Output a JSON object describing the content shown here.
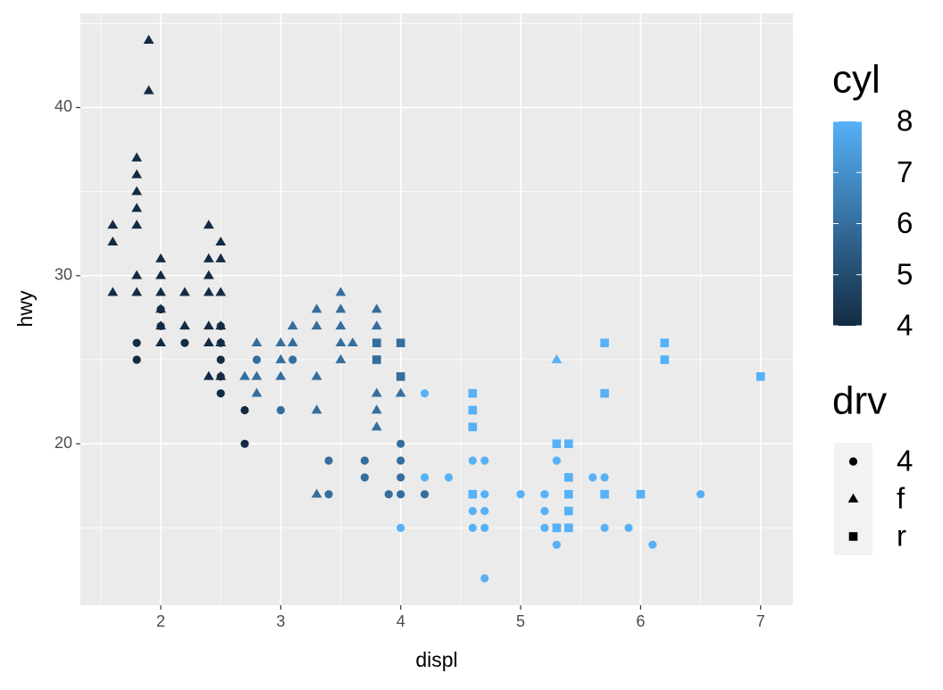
{
  "chart_data": {
    "type": "scatter",
    "x_label": "displ",
    "y_label": "hwy",
    "xlim": [
      1.33,
      7.27
    ],
    "ylim": [
      10.4,
      45.6
    ],
    "xticks": [
      2,
      3,
      4,
      5,
      6,
      7
    ],
    "yticks": [
      20,
      30,
      40
    ],
    "grid": true,
    "color_legend": {
      "title": "cyl",
      "lim": [
        4,
        8
      ],
      "ticks": [
        4,
        5,
        6,
        7,
        8
      ],
      "low": "#132B43",
      "high": "#56B1F7"
    },
    "shape_legend": {
      "title": "drv",
      "levels": [
        "4",
        "f",
        "r"
      ],
      "shapes": [
        "circle",
        "triangle",
        "square"
      ]
    },
    "points": [
      {
        "x": 1.6,
        "y": 33,
        "cyl": 4,
        "drv": "f"
      },
      {
        "x": 1.6,
        "y": 32,
        "cyl": 4,
        "drv": "f"
      },
      {
        "x": 1.6,
        "y": 29,
        "cyl": 4,
        "drv": "f"
      },
      {
        "x": 1.8,
        "y": 37,
        "cyl": 4,
        "drv": "f"
      },
      {
        "x": 1.8,
        "y": 36,
        "cyl": 4,
        "drv": "f"
      },
      {
        "x": 1.8,
        "y": 35,
        "cyl": 4,
        "drv": "f"
      },
      {
        "x": 1.8,
        "y": 34,
        "cyl": 4,
        "drv": "f"
      },
      {
        "x": 1.8,
        "y": 33,
        "cyl": 4,
        "drv": "f"
      },
      {
        "x": 1.8,
        "y": 30,
        "cyl": 4,
        "drv": "f"
      },
      {
        "x": 1.8,
        "y": 29,
        "cyl": 4,
        "drv": "f"
      },
      {
        "x": 1.9,
        "y": 44,
        "cyl": 4,
        "drv": "f"
      },
      {
        "x": 1.9,
        "y": 41,
        "cyl": 4,
        "drv": "f"
      },
      {
        "x": 2.0,
        "y": 31,
        "cyl": 4,
        "drv": "f"
      },
      {
        "x": 2.0,
        "y": 30,
        "cyl": 4,
        "drv": "f"
      },
      {
        "x": 2.0,
        "y": 29,
        "cyl": 4,
        "drv": "f"
      },
      {
        "x": 2.0,
        "y": 28,
        "cyl": 4,
        "drv": "f"
      },
      {
        "x": 2.0,
        "y": 27,
        "cyl": 4,
        "drv": "f"
      },
      {
        "x": 2.0,
        "y": 26,
        "cyl": 4,
        "drv": "f"
      },
      {
        "x": 2.2,
        "y": 29,
        "cyl": 4,
        "drv": "f"
      },
      {
        "x": 2.2,
        "y": 27,
        "cyl": 4,
        "drv": "f"
      },
      {
        "x": 2.4,
        "y": 33,
        "cyl": 4,
        "drv": "f"
      },
      {
        "x": 2.4,
        "y": 31,
        "cyl": 4,
        "drv": "f"
      },
      {
        "x": 2.4,
        "y": 30,
        "cyl": 4,
        "drv": "f"
      },
      {
        "x": 2.4,
        "y": 29,
        "cyl": 4,
        "drv": "f"
      },
      {
        "x": 2.4,
        "y": 27,
        "cyl": 4,
        "drv": "f"
      },
      {
        "x": 2.4,
        "y": 26,
        "cyl": 4,
        "drv": "f"
      },
      {
        "x": 2.4,
        "y": 24,
        "cyl": 4,
        "drv": "f"
      },
      {
        "x": 2.5,
        "y": 32,
        "cyl": 4,
        "drv": "f"
      },
      {
        "x": 2.5,
        "y": 31,
        "cyl": 4,
        "drv": "f"
      },
      {
        "x": 2.5,
        "y": 29,
        "cyl": 4,
        "drv": "f"
      },
      {
        "x": 2.5,
        "y": 27,
        "cyl": 4,
        "drv": "f"
      },
      {
        "x": 2.5,
        "y": 26,
        "cyl": 4,
        "drv": "f"
      },
      {
        "x": 2.5,
        "y": 24,
        "cyl": 4,
        "drv": "f"
      },
      {
        "x": 1.8,
        "y": 26,
        "cyl": 4,
        "drv": "4"
      },
      {
        "x": 1.8,
        "y": 25,
        "cyl": 4,
        "drv": "4"
      },
      {
        "x": 2.0,
        "y": 28,
        "cyl": 4,
        "drv": "4"
      },
      {
        "x": 2.0,
        "y": 27,
        "cyl": 4,
        "drv": "4"
      },
      {
        "x": 2.2,
        "y": 26,
        "cyl": 4,
        "drv": "4"
      },
      {
        "x": 2.5,
        "y": 27,
        "cyl": 4,
        "drv": "4"
      },
      {
        "x": 2.5,
        "y": 26,
        "cyl": 4,
        "drv": "4"
      },
      {
        "x": 2.5,
        "y": 25,
        "cyl": 4,
        "drv": "4"
      },
      {
        "x": 2.5,
        "y": 24,
        "cyl": 4,
        "drv": "4"
      },
      {
        "x": 2.5,
        "y": 23,
        "cyl": 4,
        "drv": "4"
      },
      {
        "x": 2.7,
        "y": 22,
        "cyl": 4,
        "drv": "4"
      },
      {
        "x": 2.7,
        "y": 20,
        "cyl": 4,
        "drv": "4"
      },
      {
        "x": 2.7,
        "y": 24,
        "cyl": 6,
        "drv": "f"
      },
      {
        "x": 2.8,
        "y": 26,
        "cyl": 6,
        "drv": "f"
      },
      {
        "x": 2.8,
        "y": 24,
        "cyl": 6,
        "drv": "f"
      },
      {
        "x": 2.8,
        "y": 23,
        "cyl": 6,
        "drv": "f"
      },
      {
        "x": 2.8,
        "y": 25,
        "cyl": 6,
        "drv": "4"
      },
      {
        "x": 3.0,
        "y": 26,
        "cyl": 6,
        "drv": "f"
      },
      {
        "x": 3.0,
        "y": 25,
        "cyl": 6,
        "drv": "f"
      },
      {
        "x": 3.0,
        "y": 24,
        "cyl": 6,
        "drv": "f"
      },
      {
        "x": 3.0,
        "y": 22,
        "cyl": 6,
        "drv": "4"
      },
      {
        "x": 3.1,
        "y": 27,
        "cyl": 6,
        "drv": "f"
      },
      {
        "x": 3.1,
        "y": 26,
        "cyl": 6,
        "drv": "f"
      },
      {
        "x": 3.1,
        "y": 25,
        "cyl": 6,
        "drv": "4"
      },
      {
        "x": 3.3,
        "y": 28,
        "cyl": 6,
        "drv": "f"
      },
      {
        "x": 3.3,
        "y": 27,
        "cyl": 6,
        "drv": "f"
      },
      {
        "x": 3.3,
        "y": 24,
        "cyl": 6,
        "drv": "f"
      },
      {
        "x": 3.3,
        "y": 22,
        "cyl": 6,
        "drv": "f"
      },
      {
        "x": 3.3,
        "y": 17,
        "cyl": 6,
        "drv": "f"
      },
      {
        "x": 3.4,
        "y": 19,
        "cyl": 6,
        "drv": "4"
      },
      {
        "x": 3.4,
        "y": 17,
        "cyl": 6,
        "drv": "4"
      },
      {
        "x": 3.5,
        "y": 29,
        "cyl": 6,
        "drv": "f"
      },
      {
        "x": 3.5,
        "y": 28,
        "cyl": 6,
        "drv": "f"
      },
      {
        "x": 3.5,
        "y": 27,
        "cyl": 6,
        "drv": "f"
      },
      {
        "x": 3.5,
        "y": 26,
        "cyl": 6,
        "drv": "f"
      },
      {
        "x": 3.5,
        "y": 25,
        "cyl": 6,
        "drv": "f"
      },
      {
        "x": 3.6,
        "y": 26,
        "cyl": 6,
        "drv": "f"
      },
      {
        "x": 3.7,
        "y": 19,
        "cyl": 6,
        "drv": "4"
      },
      {
        "x": 3.7,
        "y": 18,
        "cyl": 6,
        "drv": "4"
      },
      {
        "x": 3.8,
        "y": 28,
        "cyl": 6,
        "drv": "f"
      },
      {
        "x": 3.8,
        "y": 27,
        "cyl": 6,
        "drv": "f"
      },
      {
        "x": 3.8,
        "y": 23,
        "cyl": 6,
        "drv": "f"
      },
      {
        "x": 3.8,
        "y": 22,
        "cyl": 6,
        "drv": "f"
      },
      {
        "x": 3.8,
        "y": 21,
        "cyl": 6,
        "drv": "f"
      },
      {
        "x": 3.8,
        "y": 26,
        "cyl": 6,
        "drv": "r"
      },
      {
        "x": 3.8,
        "y": 25,
        "cyl": 6,
        "drv": "r"
      },
      {
        "x": 3.9,
        "y": 17,
        "cyl": 6,
        "drv": "4"
      },
      {
        "x": 4.0,
        "y": 26,
        "cyl": 6,
        "drv": "r"
      },
      {
        "x": 4.0,
        "y": 24,
        "cyl": 6,
        "drv": "r"
      },
      {
        "x": 4.0,
        "y": 23,
        "cyl": 6,
        "drv": "f"
      },
      {
        "x": 4.0,
        "y": 20,
        "cyl": 6,
        "drv": "4"
      },
      {
        "x": 4.0,
        "y": 19,
        "cyl": 6,
        "drv": "4"
      },
      {
        "x": 4.0,
        "y": 18,
        "cyl": 6,
        "drv": "4"
      },
      {
        "x": 4.0,
        "y": 17,
        "cyl": 6,
        "drv": "4"
      },
      {
        "x": 4.0,
        "y": 15,
        "cyl": 8,
        "drv": "4"
      },
      {
        "x": 4.2,
        "y": 23,
        "cyl": 8,
        "drv": "4"
      },
      {
        "x": 4.2,
        "y": 18,
        "cyl": 8,
        "drv": "4"
      },
      {
        "x": 4.2,
        "y": 17,
        "cyl": 6,
        "drv": "4"
      },
      {
        "x": 4.4,
        "y": 18,
        "cyl": 8,
        "drv": "4"
      },
      {
        "x": 4.6,
        "y": 23,
        "cyl": 8,
        "drv": "r"
      },
      {
        "x": 4.6,
        "y": 22,
        "cyl": 8,
        "drv": "r"
      },
      {
        "x": 4.6,
        "y": 21,
        "cyl": 8,
        "drv": "r"
      },
      {
        "x": 4.6,
        "y": 17,
        "cyl": 8,
        "drv": "r"
      },
      {
        "x": 4.6,
        "y": 19,
        "cyl": 8,
        "drv": "4"
      },
      {
        "x": 4.6,
        "y": 17,
        "cyl": 8,
        "drv": "4"
      },
      {
        "x": 4.6,
        "y": 16,
        "cyl": 8,
        "drv": "4"
      },
      {
        "x": 4.6,
        "y": 15,
        "cyl": 8,
        "drv": "4"
      },
      {
        "x": 4.7,
        "y": 19,
        "cyl": 8,
        "drv": "4"
      },
      {
        "x": 4.7,
        "y": 17,
        "cyl": 8,
        "drv": "4"
      },
      {
        "x": 4.7,
        "y": 16,
        "cyl": 8,
        "drv": "4"
      },
      {
        "x": 4.7,
        "y": 15,
        "cyl": 8,
        "drv": "4"
      },
      {
        "x": 4.7,
        "y": 12,
        "cyl": 8,
        "drv": "4"
      },
      {
        "x": 5.0,
        "y": 17,
        "cyl": 8,
        "drv": "4"
      },
      {
        "x": 5.2,
        "y": 17,
        "cyl": 8,
        "drv": "4"
      },
      {
        "x": 5.2,
        "y": 16,
        "cyl": 8,
        "drv": "4"
      },
      {
        "x": 5.2,
        "y": 15,
        "cyl": 8,
        "drv": "4"
      },
      {
        "x": 5.3,
        "y": 25,
        "cyl": 8,
        "drv": "f"
      },
      {
        "x": 5.3,
        "y": 20,
        "cyl": 8,
        "drv": "r"
      },
      {
        "x": 5.3,
        "y": 15,
        "cyl": 8,
        "drv": "r"
      },
      {
        "x": 5.3,
        "y": 19,
        "cyl": 8,
        "drv": "4"
      },
      {
        "x": 5.3,
        "y": 15,
        "cyl": 8,
        "drv": "4"
      },
      {
        "x": 5.3,
        "y": 14,
        "cyl": 8,
        "drv": "4"
      },
      {
        "x": 5.4,
        "y": 20,
        "cyl": 8,
        "drv": "r"
      },
      {
        "x": 5.4,
        "y": 18,
        "cyl": 8,
        "drv": "r"
      },
      {
        "x": 5.4,
        "y": 17,
        "cyl": 8,
        "drv": "r"
      },
      {
        "x": 5.4,
        "y": 16,
        "cyl": 8,
        "drv": "r"
      },
      {
        "x": 5.4,
        "y": 15,
        "cyl": 8,
        "drv": "r"
      },
      {
        "x": 5.4,
        "y": 15,
        "cyl": 8,
        "drv": "4"
      },
      {
        "x": 5.6,
        "y": 18,
        "cyl": 8,
        "drv": "4"
      },
      {
        "x": 5.7,
        "y": 26,
        "cyl": 8,
        "drv": "r"
      },
      {
        "x": 5.7,
        "y": 23,
        "cyl": 8,
        "drv": "r"
      },
      {
        "x": 5.7,
        "y": 17,
        "cyl": 8,
        "drv": "r"
      },
      {
        "x": 5.7,
        "y": 18,
        "cyl": 8,
        "drv": "4"
      },
      {
        "x": 5.7,
        "y": 15,
        "cyl": 8,
        "drv": "4"
      },
      {
        "x": 5.9,
        "y": 15,
        "cyl": 8,
        "drv": "4"
      },
      {
        "x": 6.0,
        "y": 17,
        "cyl": 8,
        "drv": "r"
      },
      {
        "x": 6.1,
        "y": 14,
        "cyl": 8,
        "drv": "4"
      },
      {
        "x": 6.2,
        "y": 26,
        "cyl": 8,
        "drv": "r"
      },
      {
        "x": 6.2,
        "y": 25,
        "cyl": 8,
        "drv": "r"
      },
      {
        "x": 6.5,
        "y": 17,
        "cyl": 8,
        "drv": "4"
      },
      {
        "x": 7.0,
        "y": 24,
        "cyl": 8,
        "drv": "r"
      }
    ]
  }
}
